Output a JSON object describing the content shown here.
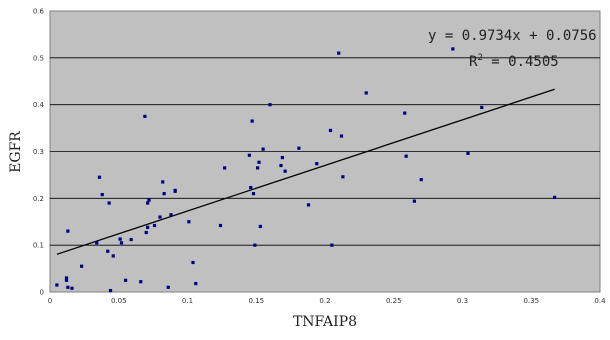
{
  "chart_data": {
    "type": "scatter",
    "xlabel": "TNFAIP8",
    "ylabel": "EGFR",
    "xlim": [
      0,
      0.4
    ],
    "ylim": [
      0,
      0.6
    ],
    "x_ticks": [
      "0",
      "0.05",
      "0.1",
      "0.15",
      "0.2",
      "0.25",
      "0.3",
      "0.35",
      "0.4"
    ],
    "y_ticks": [
      "0",
      "0.1",
      "0.2",
      "0.3",
      "0.4",
      "0.5",
      "0.6"
    ],
    "grid": "horizontal",
    "plot_background": "#c0c0c0",
    "marker_color": "#000080",
    "trendline": {
      "slope": 0.9734,
      "intercept": 0.0756,
      "x_range": [
        0.005,
        0.367
      ],
      "color": "#000000"
    },
    "equation_text": "y = 0.9734x + 0.0756",
    "r2_prefix": "R",
    "r2_exponent": "2",
    "r2_value": " = 0.4505",
    "points": [
      [
        0.005,
        0.015
      ],
      [
        0.012,
        0.03
      ],
      [
        0.012,
        0.025
      ],
      [
        0.013,
        0.13
      ],
      [
        0.013,
        0.01
      ],
      [
        0.016,
        0.008
      ],
      [
        0.023,
        0.055
      ],
      [
        0.034,
        0.105
      ],
      [
        0.036,
        0.245
      ],
      [
        0.038,
        0.208
      ],
      [
        0.042,
        0.087
      ],
      [
        0.043,
        0.19
      ],
      [
        0.044,
        0.003
      ],
      [
        0.046,
        0.077
      ],
      [
        0.051,
        0.113
      ],
      [
        0.052,
        0.105
      ],
      [
        0.055,
        0.025
      ],
      [
        0.059,
        0.112
      ],
      [
        0.066,
        0.022
      ],
      [
        0.069,
        0.375
      ],
      [
        0.07,
        0.127
      ],
      [
        0.071,
        0.19
      ],
      [
        0.071,
        0.138
      ],
      [
        0.072,
        0.196
      ],
      [
        0.076,
        0.142
      ],
      [
        0.08,
        0.16
      ],
      [
        0.082,
        0.235
      ],
      [
        0.083,
        0.21
      ],
      [
        0.086,
        0.01
      ],
      [
        0.088,
        0.165
      ],
      [
        0.091,
        0.217
      ],
      [
        0.091,
        0.215
      ],
      [
        0.101,
        0.15
      ],
      [
        0.104,
        0.063
      ],
      [
        0.106,
        0.018
      ],
      [
        0.124,
        0.142
      ],
      [
        0.127,
        0.265
      ],
      [
        0.145,
        0.292
      ],
      [
        0.146,
        0.223
      ],
      [
        0.147,
        0.365
      ],
      [
        0.148,
        0.21
      ],
      [
        0.149,
        0.1
      ],
      [
        0.151,
        0.265
      ],
      [
        0.152,
        0.277
      ],
      [
        0.153,
        0.14
      ],
      [
        0.155,
        0.305
      ],
      [
        0.16,
        0.4
      ],
      [
        0.168,
        0.27
      ],
      [
        0.169,
        0.287
      ],
      [
        0.171,
        0.258
      ],
      [
        0.181,
        0.307
      ],
      [
        0.188,
        0.186
      ],
      [
        0.194,
        0.274
      ],
      [
        0.204,
        0.345
      ],
      [
        0.205,
        0.1
      ],
      [
        0.21,
        0.51
      ],
      [
        0.212,
        0.333
      ],
      [
        0.213,
        0.246
      ],
      [
        0.23,
        0.425
      ],
      [
        0.258,
        0.382
      ],
      [
        0.259,
        0.29
      ],
      [
        0.265,
        0.194
      ],
      [
        0.27,
        0.24
      ],
      [
        0.293,
        0.519
      ],
      [
        0.304,
        0.296
      ],
      [
        0.314,
        0.394
      ],
      [
        0.367,
        0.202
      ]
    ]
  }
}
